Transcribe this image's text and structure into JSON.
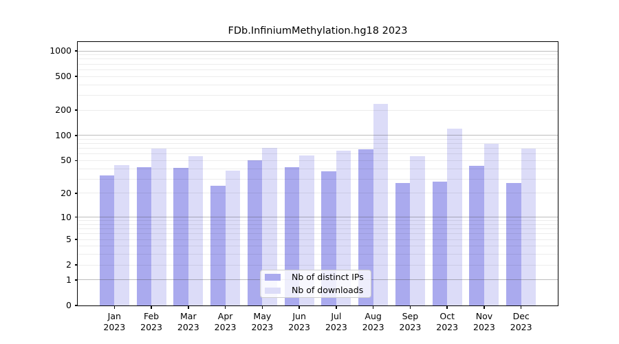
{
  "chart_data": {
    "type": "bar",
    "title": "FDb.InfiniumMethylation.hg18 2023",
    "categories": [
      "Jan",
      "Feb",
      "Mar",
      "Apr",
      "May",
      "Jun",
      "Jul",
      "Aug",
      "Sep",
      "Oct",
      "Nov",
      "Dec"
    ],
    "year": "2023",
    "series": [
      {
        "name": "Nb of distinct IPs",
        "color": "#aaaaee",
        "values": [
          33,
          42,
          41,
          25,
          50,
          42,
          37,
          68,
          27,
          28,
          43,
          27
        ]
      },
      {
        "name": "Nb of downloads",
        "color": "#dcdcf8",
        "values": [
          44,
          70,
          56,
          38,
          71,
          58,
          66,
          238,
          57,
          120,
          80,
          70
        ]
      }
    ],
    "xlabel": "",
    "ylabel": "",
    "yscale": "log1p",
    "ylim": [
      0,
      1276
    ],
    "yticks": [
      0,
      1,
      2,
      5,
      10,
      20,
      50,
      100,
      200,
      500,
      1000
    ],
    "major_gridlines": [
      1,
      10,
      100,
      1000
    ],
    "grid": true,
    "legend_position": "lower center",
    "colors": {
      "background": "#ffffff",
      "spine": "#000000",
      "major_grid": "#b5b5b5",
      "minor_grid": "#ececec",
      "legend_border": "#cccccc"
    }
  }
}
